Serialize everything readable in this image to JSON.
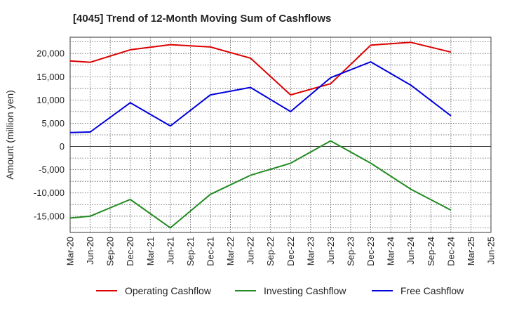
{
  "chart_data": {
    "type": "line",
    "title": "[4045]  Trend of 12-Month Moving Sum of Cashflows",
    "xlabel": "",
    "ylabel": "Amount (million yen)",
    "ylim": [
      -18500,
      23500
    ],
    "yticks": [
      -15000,
      -10000,
      -5000,
      0,
      5000,
      10000,
      15000,
      20000
    ],
    "ytick_labels": [
      "-15,000",
      "-10,000",
      "-5,000",
      "0",
      "5,000",
      "10,000",
      "15,000",
      "20,000"
    ],
    "categories": [
      "Mar-20",
      "Jun-20",
      "Sep-20",
      "Dec-20",
      "Mar-21",
      "Jun-21",
      "Sep-21",
      "Dec-21",
      "Mar-22",
      "Jun-22",
      "Sep-22",
      "Dec-22",
      "Mar-23",
      "Jun-23",
      "Sep-23",
      "Dec-23",
      "Mar-24",
      "Jun-24",
      "Sep-24",
      "Dec-24",
      "Mar-25",
      "Jun-25"
    ],
    "grid": true,
    "legend_position": "bottom",
    "series": [
      {
        "name": "Operating Cashflow",
        "color": "#dd0000",
        "values": [
          18400,
          18100,
          null,
          20800,
          null,
          21900,
          null,
          21400,
          null,
          19000,
          null,
          11100,
          null,
          13500,
          null,
          21800,
          null,
          22400,
          null,
          20300,
          null,
          null
        ]
      },
      {
        "name": "Investing Cashflow",
        "color": "#228b22",
        "values": [
          -15400,
          -15000,
          null,
          -11400,
          null,
          -17500,
          null,
          -10300,
          null,
          -6200,
          null,
          -3600,
          null,
          1200,
          null,
          -3600,
          null,
          -9200,
          null,
          -13700,
          null,
          null
        ]
      },
      {
        "name": "Free Cashflow",
        "color": "#0000dd",
        "values": [
          3000,
          3100,
          null,
          9400,
          null,
          4400,
          null,
          11100,
          null,
          12700,
          null,
          7500,
          null,
          14800,
          null,
          18200,
          null,
          13200,
          null,
          6600,
          null,
          null
        ]
      }
    ]
  }
}
